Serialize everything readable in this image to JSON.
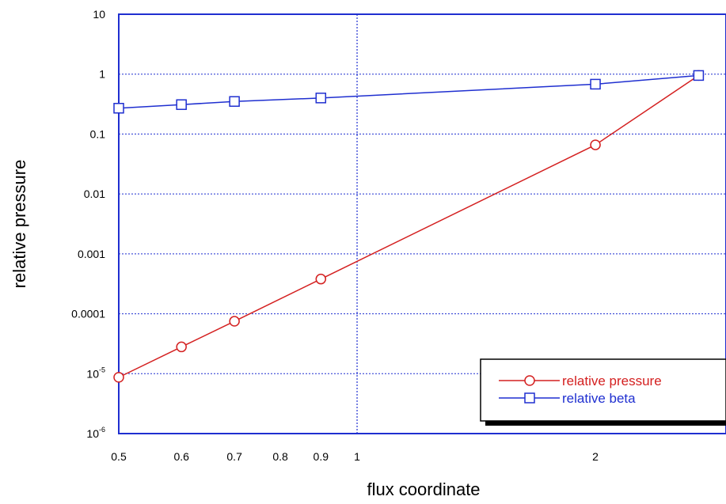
{
  "chart_data": {
    "type": "line",
    "title": "",
    "xlabel": "flux coordinate",
    "ylabel": "relative pressure",
    "x_scale": "log",
    "y_scale": "log",
    "xlim": [
      0.5,
      2.7
    ],
    "ylim": [
      1e-06,
      10
    ],
    "x_ticks": [
      {
        "value": 0.5,
        "label": "0.5"
      },
      {
        "value": 0.6,
        "label": "0.6"
      },
      {
        "value": 0.7,
        "label": "0.7"
      },
      {
        "value": 0.8,
        "label": "0.8"
      },
      {
        "value": 0.9,
        "label": "0.9"
      },
      {
        "value": 1,
        "label": "1"
      },
      {
        "value": 2,
        "label": "2"
      }
    ],
    "y_ticks": [
      {
        "value": 10,
        "label": "10"
      },
      {
        "value": 1,
        "label": "1"
      },
      {
        "value": 0.1,
        "label": "0.1"
      },
      {
        "value": 0.01,
        "label": "0.01"
      },
      {
        "value": 0.001,
        "label": "0.001"
      },
      {
        "value": 0.0001,
        "label": "0.0001"
      },
      {
        "value": 1e-05,
        "label": "10",
        "sup": "-5"
      },
      {
        "value": 1e-06,
        "label": "10",
        "sup": "-6"
      }
    ],
    "grid": true,
    "legend_position": "bottom-right",
    "series": [
      {
        "name": "relative pressure",
        "color": "#d42020",
        "marker": "circle",
        "x": [
          0.5,
          0.6,
          0.7,
          0.9,
          2,
          2.7
        ],
        "y": [
          8.7e-06,
          2.8e-05,
          7.5e-05,
          0.00038,
          0.066,
          0.95
        ]
      },
      {
        "name": "relative beta",
        "color": "#1f2fd0",
        "marker": "square",
        "x": [
          0.5,
          0.6,
          0.7,
          0.9,
          2,
          2.7
        ],
        "y": [
          0.27,
          0.31,
          0.35,
          0.4,
          0.68,
          0.95
        ]
      }
    ]
  }
}
